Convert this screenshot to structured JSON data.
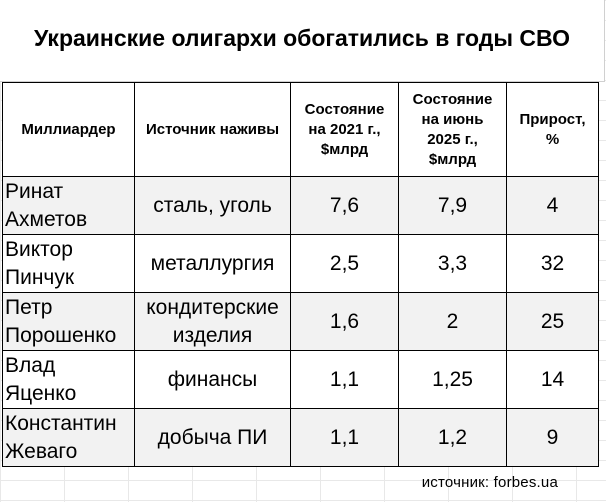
{
  "title": "Украинские олигархи обогатились в годы СВО",
  "headers": {
    "billionaire": "Миллиардер",
    "source_of_wealth": "Источник наживы",
    "wealth_2021_line1": "Состояние",
    "wealth_2021_line2": "на 2021 г.,",
    "wealth_2021_line3": "$млрд",
    "wealth_2025_line1": "Состояние",
    "wealth_2025_line2": "на июнь",
    "wealth_2025_line3": "2025 г.,",
    "wealth_2025_line4": "$млрд",
    "growth_line1": "Прирост,",
    "growth_line2": "%"
  },
  "rows": [
    {
      "first": "Ринат",
      "last": "Ахметов",
      "source1": "сталь, уголь",
      "source2": "",
      "w2021": "7,6",
      "w2025": "7,9",
      "growth": "4"
    },
    {
      "first": "Виктор",
      "last": "Пинчук",
      "source1": "металлургия",
      "source2": "",
      "w2021": "2,5",
      "w2025": "3,3",
      "growth": "32"
    },
    {
      "first": "Петр",
      "last": "Порошенко",
      "source1": "кондитерские",
      "source2": "изделия",
      "w2021": "1,6",
      "w2025": "2",
      "growth": "25"
    },
    {
      "first": "Влад",
      "last": "Яценко",
      "source1": "финансы",
      "source2": "",
      "w2021": "1,1",
      "w2025": "1,25",
      "growth": "14"
    },
    {
      "first": "Константин",
      "last": "Жеваго",
      "source1": "добыча ПИ",
      "source2": "",
      "w2021": "1,1",
      "w2025": "1,2",
      "growth": "9"
    }
  ],
  "source_note": "источник: forbes.ua"
}
